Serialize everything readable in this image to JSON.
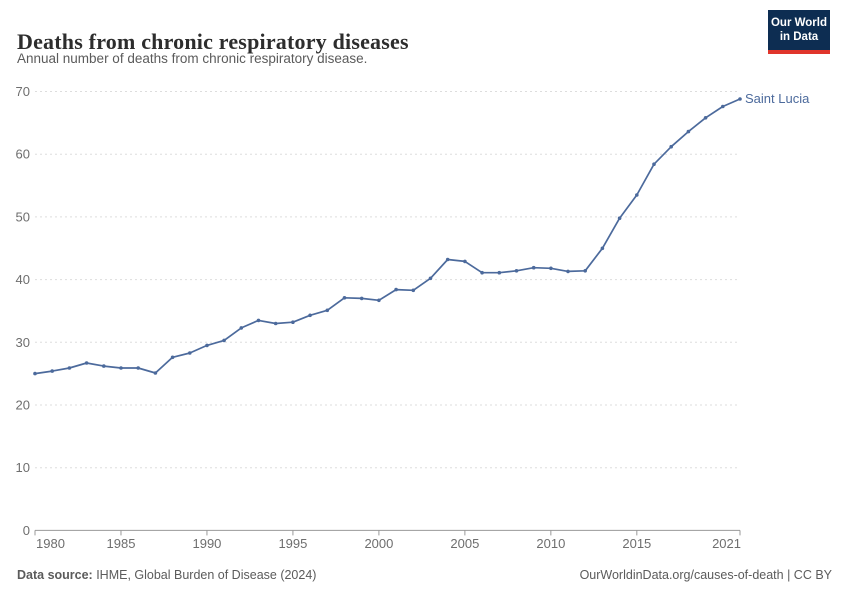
{
  "header": {
    "title": "Deaths from chronic respiratory diseases",
    "subtitle": "Annual number of deaths from chronic respiratory disease.",
    "logo": {
      "line1": "Our World",
      "line2": "in Data",
      "bg_color": "#0d2d52",
      "bar_color": "#e0352b"
    }
  },
  "chart_data": {
    "type": "line",
    "title": "Deaths from chronic respiratory diseases",
    "xlabel": "",
    "ylabel": "",
    "xlim": [
      1980,
      2021
    ],
    "ylim": [
      0,
      70
    ],
    "grid": "horizontal-dashed",
    "legend_position": "end-of-line-label",
    "entity_label": "Saint Lucia",
    "x_ticks": [
      1980,
      1985,
      1990,
      1995,
      2000,
      2005,
      2010,
      2015,
      2021
    ],
    "y_ticks": [
      0,
      10,
      20,
      30,
      40,
      50,
      60,
      70
    ],
    "series": [
      {
        "name": "Saint Lucia",
        "color": "#4c6a9c",
        "x": [
          1980,
          1981,
          1982,
          1983,
          1984,
          1985,
          1986,
          1987,
          1988,
          1989,
          1990,
          1991,
          1992,
          1993,
          1994,
          1995,
          1996,
          1997,
          1998,
          1999,
          2000,
          2001,
          2002,
          2003,
          2004,
          2005,
          2006,
          2007,
          2008,
          2009,
          2010,
          2011,
          2012,
          2013,
          2014,
          2015,
          2016,
          2017,
          2018,
          2019,
          2020,
          2021
        ],
        "values": [
          25.0,
          25.4,
          25.9,
          26.7,
          26.2,
          25.9,
          25.9,
          25.1,
          27.6,
          28.3,
          29.5,
          30.3,
          32.3,
          33.5,
          33.0,
          33.2,
          34.3,
          35.1,
          37.1,
          37.0,
          36.7,
          38.4,
          38.3,
          40.2,
          43.2,
          42.9,
          41.1,
          41.1,
          41.4,
          41.9,
          41.8,
          41.3,
          41.4,
          45.0,
          49.8,
          53.5,
          58.4,
          61.2,
          63.6,
          65.8,
          67.6,
          68.8
        ]
      }
    ]
  },
  "footer": {
    "source_label": "Data source:",
    "source_text": " IHME, Global Burden of Disease (2024)",
    "credit": "OurWorldinData.org/causes-of-death | CC BY"
  },
  "colors": {
    "line": "#4c6a9c",
    "gridline": "#dddddd",
    "axis": "#999999",
    "tick_label": "#6e6e6e",
    "title_text": "#2d2d2d",
    "muted_text": "#5b5b5b"
  }
}
